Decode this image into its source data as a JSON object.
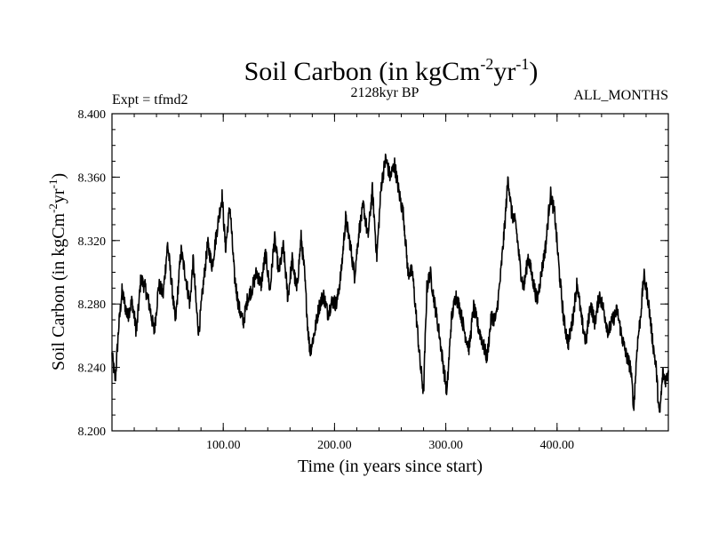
{
  "chart_data": {
    "type": "line",
    "title_main": "Soil Carbon (in kgCm",
    "title_exp1": "-2",
    "title_mid": "yr",
    "title_exp2": "-1",
    "title_close": ")",
    "subtitle": "2128kyr BP",
    "left_label": "Expt = tfmd2",
    "right_label": "ALL_MONTHS",
    "xlabel": "Time (in years since start)",
    "ylabel_main": "Soil Carbon (in kgCm",
    "ylabel_exp1": "-2",
    "ylabel_mid": "yr",
    "ylabel_exp2": "-1",
    "ylabel_close": ")",
    "xlim": [
      0,
      500
    ],
    "ylim": [
      8.2,
      8.4
    ],
    "xticks": [
      100,
      200,
      300,
      400
    ],
    "xtick_labels": [
      "100.00",
      "200.00",
      "300.00",
      "400.00"
    ],
    "yticks": [
      8.2,
      8.24,
      8.28,
      8.32,
      8.36,
      8.4
    ],
    "ytick_labels": [
      "8.200",
      "8.240",
      "8.280",
      "8.320",
      "8.360",
      "8.400"
    ],
    "series": [
      {
        "name": "Soil Carbon",
        "anchors": [
          [
            0,
            8.248
          ],
          [
            3,
            8.232
          ],
          [
            6,
            8.265
          ],
          [
            9,
            8.288
          ],
          [
            14,
            8.272
          ],
          [
            18,
            8.282
          ],
          [
            22,
            8.262
          ],
          [
            26,
            8.296
          ],
          [
            30,
            8.29
          ],
          [
            34,
            8.278
          ],
          [
            38,
            8.262
          ],
          [
            42,
            8.292
          ],
          [
            46,
            8.286
          ],
          [
            50,
            8.318
          ],
          [
            54,
            8.29
          ],
          [
            57,
            8.268
          ],
          [
            62,
            8.314
          ],
          [
            66,
            8.298
          ],
          [
            70,
            8.28
          ],
          [
            73,
            8.308
          ],
          [
            76,
            8.276
          ],
          [
            78,
            8.262
          ],
          [
            82,
            8.292
          ],
          [
            86,
            8.318
          ],
          [
            90,
            8.304
          ],
          [
            95,
            8.33
          ],
          [
            99,
            8.348
          ],
          [
            102,
            8.315
          ],
          [
            106,
            8.342
          ],
          [
            110,
            8.298
          ],
          [
            114,
            8.278
          ],
          [
            118,
            8.268
          ],
          [
            122,
            8.284
          ],
          [
            126,
            8.29
          ],
          [
            130,
            8.3
          ],
          [
            134,
            8.292
          ],
          [
            138,
            8.312
          ],
          [
            142,
            8.288
          ],
          [
            146,
            8.322
          ],
          [
            150,
            8.3
          ],
          [
            154,
            8.316
          ],
          [
            158,
            8.284
          ],
          [
            162,
            8.308
          ],
          [
            166,
            8.288
          ],
          [
            170,
            8.322
          ],
          [
            173,
            8.3
          ],
          [
            176,
            8.265
          ],
          [
            178,
            8.25
          ],
          [
            182,
            8.262
          ],
          [
            186,
            8.278
          ],
          [
            190,
            8.286
          ],
          [
            194,
            8.274
          ],
          [
            198,
            8.282
          ],
          [
            202,
            8.28
          ],
          [
            206,
            8.3
          ],
          [
            210,
            8.334
          ],
          [
            214,
            8.318
          ],
          [
            218,
            8.298
          ],
          [
            222,
            8.326
          ],
          [
            226,
            8.342
          ],
          [
            230,
            8.322
          ],
          [
            234,
            8.352
          ],
          [
            238,
            8.31
          ],
          [
            242,
            8.355
          ],
          [
            246,
            8.372
          ],
          [
            250,
            8.36
          ],
          [
            254,
            8.368
          ],
          [
            258,
            8.35
          ],
          [
            262,
            8.336
          ],
          [
            266,
            8.3
          ],
          [
            270,
            8.3
          ],
          [
            274,
            8.268
          ],
          [
            277,
            8.242
          ],
          [
            280,
            8.224
          ],
          [
            283,
            8.29
          ],
          [
            286,
            8.3
          ],
          [
            290,
            8.28
          ],
          [
            294,
            8.262
          ],
          [
            298,
            8.24
          ],
          [
            301,
            8.224
          ],
          [
            305,
            8.27
          ],
          [
            309,
            8.286
          ],
          [
            313,
            8.276
          ],
          [
            317,
            8.262
          ],
          [
            321,
            8.252
          ],
          [
            325,
            8.278
          ],
          [
            329,
            8.266
          ],
          [
            333,
            8.256
          ],
          [
            337,
            8.246
          ],
          [
            341,
            8.272
          ],
          [
            345,
            8.27
          ],
          [
            349,
            8.296
          ],
          [
            353,
            8.33
          ],
          [
            356,
            8.36
          ],
          [
            359,
            8.338
          ],
          [
            363,
            8.33
          ],
          [
            367,
            8.302
          ],
          [
            370,
            8.29
          ],
          [
            374,
            8.31
          ],
          [
            378,
            8.296
          ],
          [
            382,
            8.282
          ],
          [
            386,
            8.3
          ],
          [
            390,
            8.318
          ],
          [
            394,
            8.35
          ],
          [
            398,
            8.336
          ],
          [
            402,
            8.3
          ],
          [
            406,
            8.27
          ],
          [
            410,
            8.255
          ],
          [
            414,
            8.27
          ],
          [
            418,
            8.294
          ],
          [
            422,
            8.27
          ],
          [
            426,
            8.256
          ],
          [
            430,
            8.28
          ],
          [
            434,
            8.268
          ],
          [
            438,
            8.286
          ],
          [
            442,
            8.276
          ],
          [
            446,
            8.262
          ],
          [
            450,
            8.27
          ],
          [
            454,
            8.276
          ],
          [
            458,
            8.26
          ],
          [
            462,
            8.248
          ],
          [
            466,
            8.24
          ],
          [
            469,
            8.215
          ],
          [
            472,
            8.254
          ],
          [
            475,
            8.272
          ],
          [
            478,
            8.298
          ],
          [
            482,
            8.282
          ],
          [
            486,
            8.256
          ],
          [
            489,
            8.24
          ],
          [
            492,
            8.208
          ],
          [
            495,
            8.236
          ],
          [
            498,
            8.232
          ],
          [
            500,
            8.238
          ]
        ]
      }
    ]
  }
}
